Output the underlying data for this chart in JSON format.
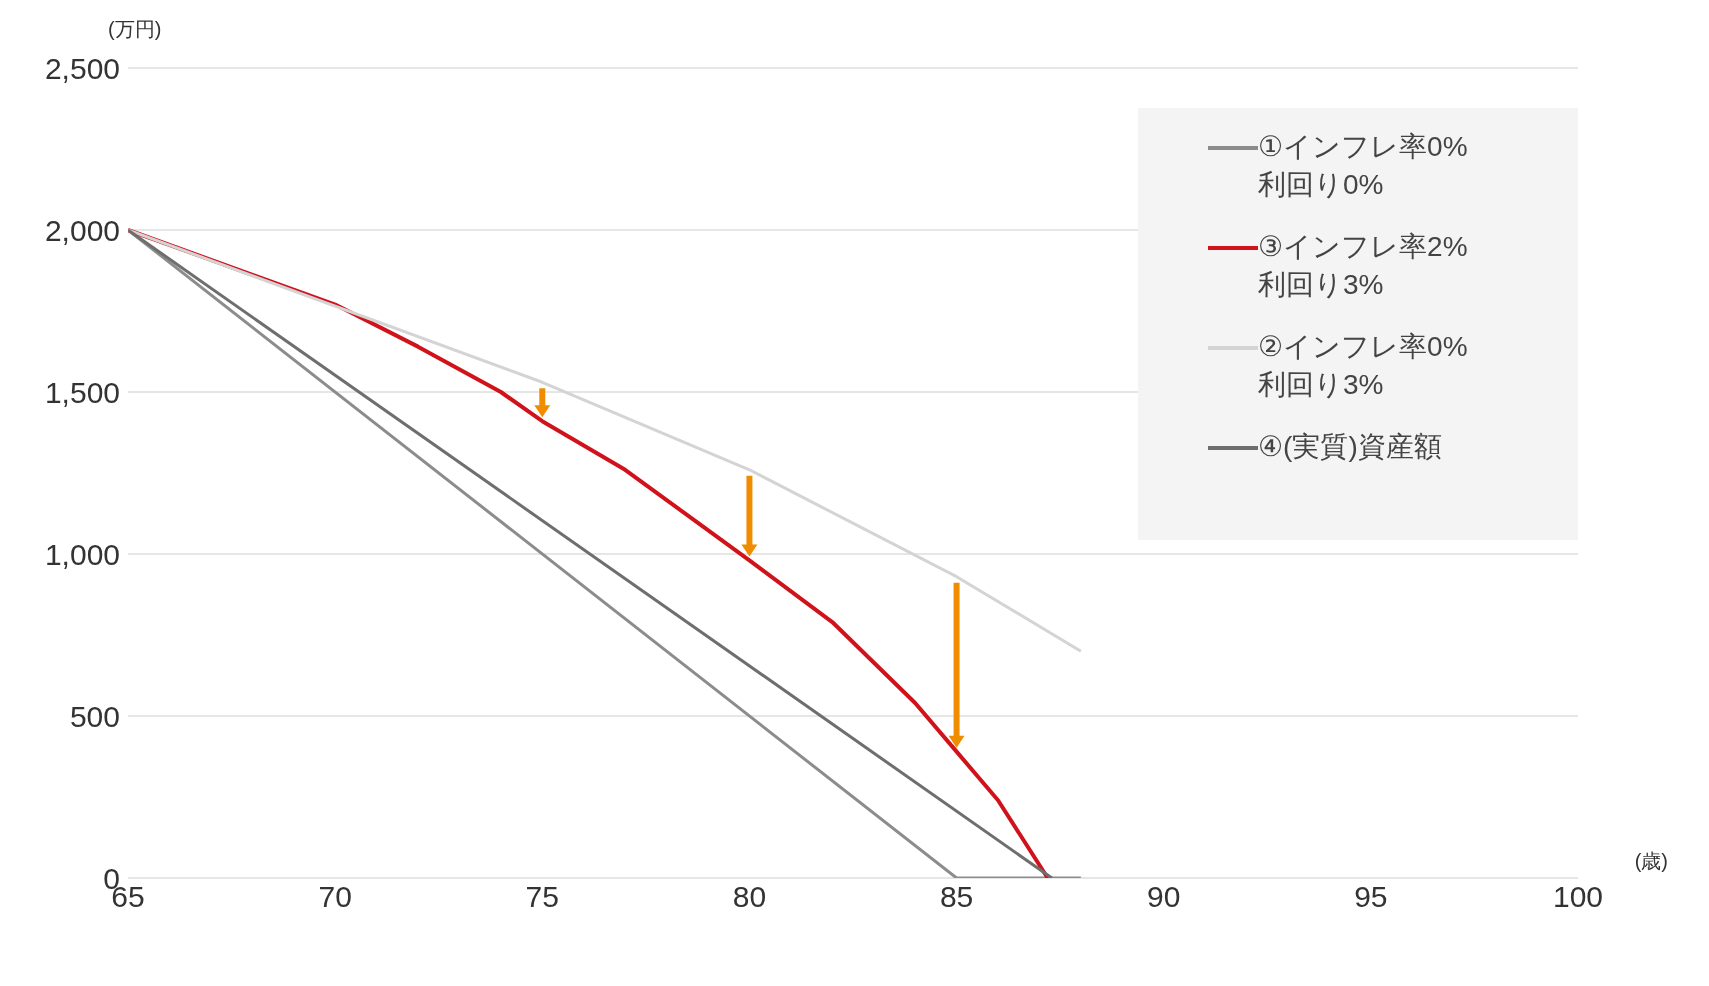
{
  "chart_data": {
    "type": "line",
    "xlabel": "(歳)",
    "ylabel": "(万円)",
    "xlim": [
      65,
      100
    ],
    "xticks": [
      65,
      70,
      75,
      80,
      85,
      90,
      95,
      100
    ],
    "ylim": [
      0,
      2500
    ],
    "yticks": [
      0,
      500,
      {
        "value": 1000,
        "label": "1,000"
      },
      {
        "value": 1500,
        "label": "1,500"
      },
      {
        "value": 2000,
        "label": "2,000"
      },
      {
        "value": 2500,
        "label": "2,500"
      }
    ],
    "grid": "y",
    "legend": "top right",
    "marker": "none",
    "line_style": "solid",
    "series": [
      {
        "name": "①インフレ率0% 利回り0%",
        "color": "#8c8c8c",
        "x": [
          65,
          85,
          88
        ],
        "values": [
          2000,
          0,
          0
        ]
      },
      {
        "name": "③インフレ率2% 利回り3%",
        "color": "#d0121b",
        "x": [
          65,
          70,
          72,
          74,
          75,
          77,
          80,
          82,
          84,
          85,
          86,
          87.2
        ],
        "values": [
          2000,
          1770,
          1640,
          1500,
          1410,
          1260,
          980,
          790,
          540,
          390,
          240,
          0
        ]
      },
      {
        "name": "②インフレ率0% 利回り3%",
        "color": "#d4d4d4",
        "x": [
          65,
          75,
          80,
          85,
          88
        ],
        "values": [
          2000,
          1530,
          1260,
          930,
          700
        ]
      },
      {
        "name": "④(実質)資産額",
        "color": "#6e6e6e",
        "x": [
          65,
          87.3
        ],
        "values": [
          2000,
          0
        ]
      }
    ]
  }
}
